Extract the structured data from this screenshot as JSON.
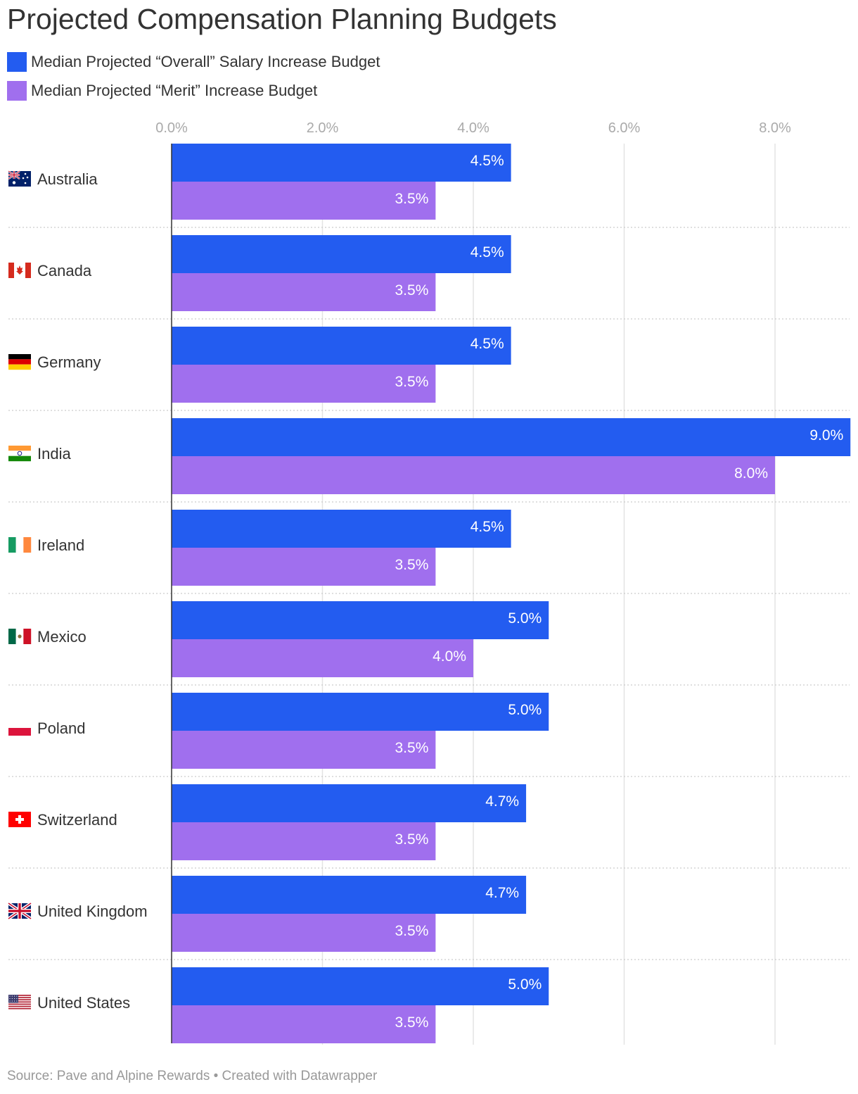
{
  "chart_data": {
    "type": "bar",
    "orientation": "horizontal",
    "title": "Projected Compensation Planning Budgets",
    "categories": [
      "Australia",
      "Canada",
      "Germany",
      "India",
      "Ireland",
      "Mexico",
      "Poland",
      "Switzerland",
      "United Kingdom",
      "United States"
    ],
    "series": [
      {
        "name": "Median Projected “Overall” Salary Increase Budget",
        "color": "#235cf0",
        "values": [
          4.5,
          4.5,
          4.5,
          9.0,
          4.5,
          5.0,
          5.0,
          4.7,
          4.7,
          5.0
        ],
        "labels": [
          "4.5%",
          "4.5%",
          "4.5%",
          "9.0%",
          "4.5%",
          "5.0%",
          "5.0%",
          "4.7%",
          "4.7%",
          "5.0%"
        ]
      },
      {
        "name": "Median Projected “Merit” Increase Budget",
        "color": "#a06fee",
        "values": [
          3.5,
          3.5,
          3.5,
          8.0,
          3.5,
          4.0,
          3.5,
          3.5,
          3.5,
          3.5
        ],
        "labels": [
          "3.5%",
          "3.5%",
          "3.5%",
          "8.0%",
          "3.5%",
          "4.0%",
          "3.5%",
          "3.5%",
          "3.5%",
          "3.5%"
        ]
      }
    ],
    "flags": [
      "flag-australia",
      "flag-canada",
      "flag-germany",
      "flag-india",
      "flag-ireland",
      "flag-mexico",
      "flag-poland",
      "flag-switzerland",
      "flag-united-kingdom",
      "flag-united-states"
    ],
    "x_ticks": [
      0,
      2,
      4,
      6,
      8
    ],
    "x_tick_labels": [
      "0.0%",
      "2.0%",
      "4.0%",
      "6.0%",
      "8.0%"
    ],
    "xlim": [
      0,
      9
    ],
    "grid": true,
    "legend_position": "top-left",
    "xlabel": "",
    "ylabel": ""
  },
  "source": "Source: Pave and Alpine Rewards • Created with Datawrapper"
}
